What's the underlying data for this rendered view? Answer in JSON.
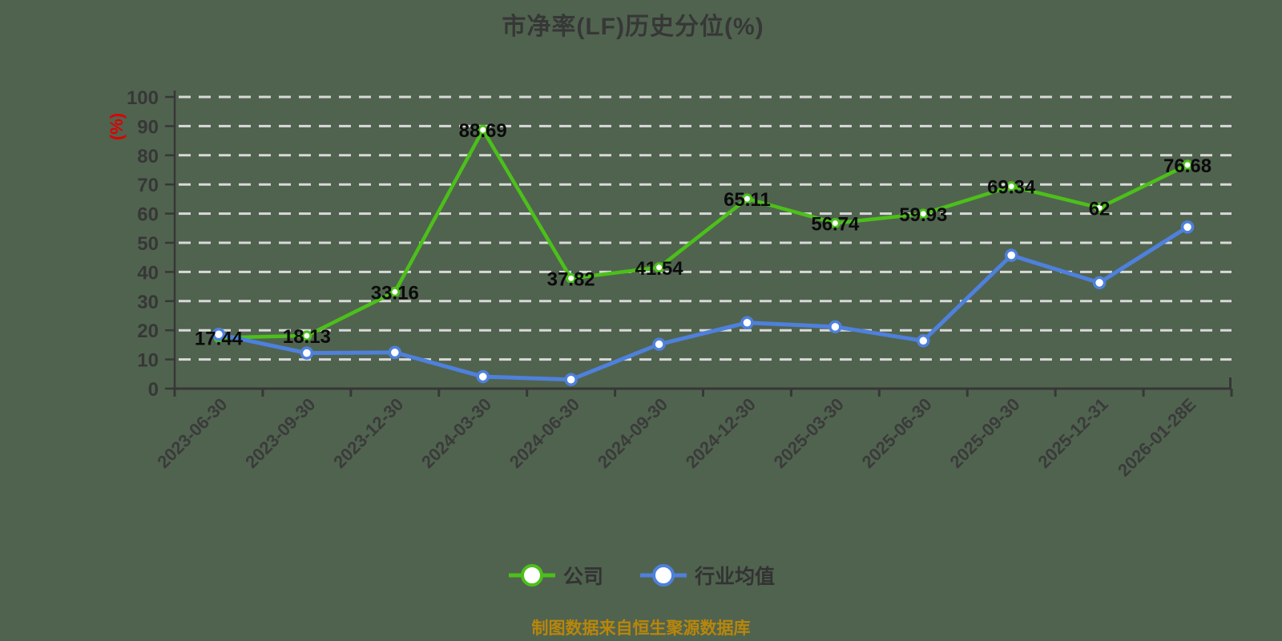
{
  "title": "市净率(LF)历史分位(%)",
  "y_axis_unit": "(%)",
  "footer": "制图数据来自恒生聚源数据库",
  "legend": [
    {
      "label": "公司",
      "color": "#4cc01a"
    },
    {
      "label": "行业均值",
      "color": "#4e80dc"
    }
  ],
  "colors": {
    "background": "#50634f",
    "grid": "#d9d9d9",
    "axis": "#373737",
    "company_line": "#4cc01a",
    "industry_line": "#4e80dc",
    "marker_fill": "#ffffff",
    "value_label": "#0b0b0b",
    "unit_label": "#dd0000",
    "footer_text": "#b8860b",
    "title_text": "#373737"
  },
  "chart_data": {
    "type": "line",
    "title": "市净率(LF)历史分位(%)",
    "ylabel": "(%)",
    "ylim": [
      0,
      100
    ],
    "y_ticks": [
      0,
      10,
      20,
      30,
      40,
      50,
      60,
      70,
      80,
      90,
      100
    ],
    "grid": "horizontal dashed",
    "legend_position": "bottom",
    "categories": [
      "2023-06-30",
      "2023-09-30",
      "2023-12-30",
      "2024-03-30",
      "2024-06-30",
      "2024-09-30",
      "2024-12-30",
      "2025-03-30",
      "2025-06-30",
      "2025-09-30",
      "2025-12-31",
      "2026-01-28E"
    ],
    "series": [
      {
        "name": "公司",
        "color": "#4cc01a",
        "values": [
          17.44,
          18.13,
          33.16,
          88.69,
          37.82,
          41.54,
          65.11,
          56.74,
          59.93,
          69.34,
          62,
          76.68
        ],
        "labels": [
          "17.44",
          "18.13",
          "33.16",
          "88.69",
          "37.82",
          "41.54",
          "65.11",
          "56.74",
          "59.93",
          "69.34",
          "62",
          "76.68"
        ]
      },
      {
        "name": "行业均值",
        "color": "#4e80dc",
        "values": [
          18.6,
          12.2,
          12.4,
          4.1,
          3.1,
          15.2,
          22.6,
          21.2,
          16.4,
          45.7,
          36.3,
          55.4
        ],
        "labels": []
      }
    ]
  }
}
